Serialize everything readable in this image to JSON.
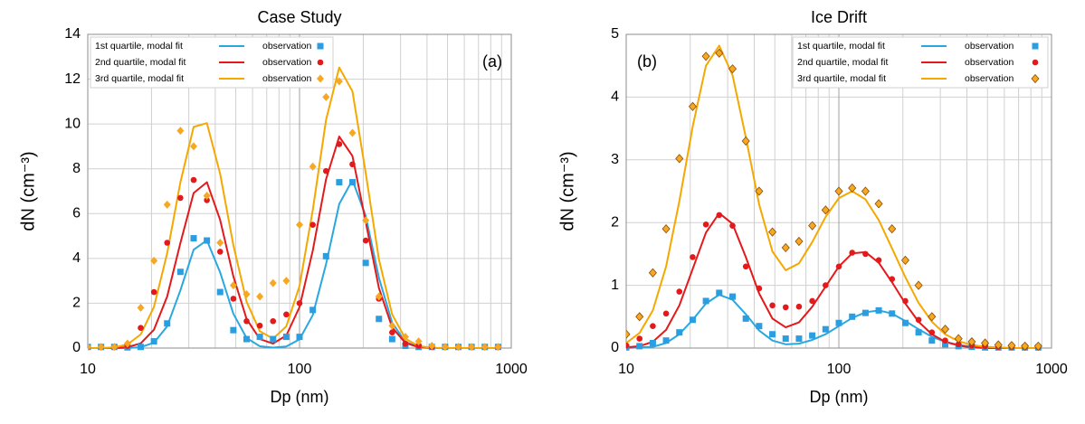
{
  "chart_data": [
    {
      "type": "line",
      "title": "Case Study",
      "x_label": "Dp (nm)",
      "y_label": "dN (cm⁻³)",
      "annotation": "(a)",
      "annotation_corner": "upper right",
      "x_scale": "log",
      "xlim": [
        10,
        1000
      ],
      "xticks": [
        10,
        100,
        1000
      ],
      "x_minor_ticks": [
        20,
        30,
        40,
        50,
        60,
        70,
        80,
        90,
        200,
        300,
        400,
        500,
        600,
        700,
        800,
        900
      ],
      "ylim": [
        0,
        14
      ],
      "yticks": [
        0,
        2,
        4,
        6,
        8,
        10,
        12,
        14
      ],
      "grid": true,
      "legend": "upper left",
      "x": [
        10,
        11.55,
        13.34,
        15.4,
        17.78,
        20.54,
        23.71,
        27.38,
        31.62,
        36.52,
        42.17,
        48.7,
        56.23,
        64.94,
        74.99,
        86.6,
        100,
        115.5,
        133.4,
        154,
        177.8,
        205.4,
        237.1,
        273.8,
        316.2,
        365.2,
        421.7,
        487,
        562.3,
        649.4,
        749.9,
        866
      ],
      "series": [
        {
          "name": "1st quartile, modal fit",
          "color": "#29a8e0",
          "values": [
            0,
            0,
            0,
            0,
            0.04,
            0.24,
            0.97,
            2.58,
            4.39,
            4.81,
            3.38,
            1.53,
            0.45,
            0.08,
            0.02,
            0.07,
            0.39,
            1.47,
            3.74,
            6.43,
            7.5,
            5.89,
            3.14,
            1.13,
            0.28,
            0.05,
            0,
            0,
            0,
            0,
            0,
            0
          ]
        },
        {
          "name": "observation",
          "color": "#2a9ee0",
          "marker": "square",
          "values": [
            0.05,
            0.05,
            0.05,
            0.03,
            0.05,
            0.3,
            1.1,
            3.4,
            4.9,
            4.8,
            2.5,
            0.8,
            0.4,
            0.5,
            0.4,
            0.5,
            0.5,
            1.7,
            4.1,
            7.4,
            7.4,
            3.8,
            1.3,
            0.4,
            0.1,
            0.05,
            0.05,
            0.05,
            0.05,
            0.05,
            0.05,
            0.05
          ]
        },
        {
          "name": "2nd quartile, modal fit",
          "color": "#e3191b",
          "values": [
            0,
            0,
            0,
            0.04,
            0.21,
            0.82,
            2.3,
            4.69,
            6.92,
            7.4,
            5.72,
            3.2,
            1.3,
            0.4,
            0.2,
            0.56,
            1.83,
            4.35,
            7.53,
            9.44,
            8.57,
            5.63,
            2.68,
            0.92,
            0.23,
            0.04,
            0,
            0,
            0,
            0,
            0,
            0
          ]
        },
        {
          "name": "observation",
          "color": "#e3191b",
          "marker": "circle",
          "values": [
            0.05,
            0.05,
            0.05,
            0.1,
            0.9,
            2.5,
            4.7,
            6.7,
            7.5,
            6.6,
            4.3,
            2.2,
            1.2,
            1.0,
            1.2,
            1.5,
            2.0,
            5.5,
            7.9,
            9.1,
            8.2,
            4.8,
            2.2,
            0.7,
            0.2,
            0.1,
            0.05,
            0.05,
            0.05,
            0.05,
            0.05,
            0.05
          ]
        },
        {
          "name": "3rd quartile, modal fit",
          "color": "#f5a800",
          "values": [
            0,
            0,
            0.03,
            0.16,
            0.61,
            1.84,
            4.23,
            7.4,
            9.87,
            10.04,
            7.78,
            4.59,
            2.07,
            0.75,
            0.42,
            0.97,
            2.77,
            6.16,
            10.18,
            12.52,
            11.46,
            7.81,
            3.96,
            1.5,
            0.42,
            0.09,
            0.01,
            0,
            0,
            0,
            0,
            0
          ]
        },
        {
          "name": "observation",
          "color": "#f7a823",
          "marker": "diamond",
          "values": [
            0.05,
            0.05,
            0.05,
            0.2,
            1.8,
            3.9,
            6.4,
            9.7,
            9.0,
            6.8,
            4.7,
            2.8,
            2.4,
            2.3,
            2.9,
            3.0,
            5.5,
            8.1,
            11.2,
            11.9,
            9.6,
            5.7,
            2.3,
            1.0,
            0.5,
            0.3,
            0.1,
            0.05,
            0.05,
            0.05,
            0.05,
            0.05
          ]
        }
      ]
    },
    {
      "type": "line",
      "title": "Ice Drift",
      "x_label": "Dp (nm)",
      "y_label": "dN (cm⁻³)",
      "annotation": "(b)",
      "annotation_corner": "upper left",
      "x_scale": "log",
      "xlim": [
        10,
        1000
      ],
      "xticks": [
        10,
        100,
        1000
      ],
      "x_minor_ticks": [
        20,
        30,
        40,
        50,
        60,
        70,
        80,
        90,
        200,
        300,
        400,
        500,
        600,
        700,
        800,
        900
      ],
      "ylim": [
        0,
        5
      ],
      "yticks": [
        0,
        1,
        2,
        3,
        4,
        5
      ],
      "grid": true,
      "legend": "upper right",
      "x": [
        10,
        11.55,
        13.34,
        15.4,
        17.78,
        20.54,
        23.71,
        27.38,
        31.62,
        36.52,
        42.17,
        48.7,
        56.23,
        64.94,
        74.99,
        86.6,
        100,
        115.5,
        133.4,
        154,
        177.8,
        205.4,
        237.1,
        273.8,
        316.2,
        365.2,
        421.7,
        487,
        562.3,
        649.4,
        749.9,
        866
      ],
      "series": [
        {
          "name": "1st  quartile, modal fit",
          "color": "#29a8e0",
          "values": [
            0,
            0.01,
            0.02,
            0.08,
            0.22,
            0.45,
            0.71,
            0.85,
            0.77,
            0.54,
            0.28,
            0.12,
            0.06,
            0.07,
            0.13,
            0.22,
            0.35,
            0.48,
            0.57,
            0.6,
            0.55,
            0.43,
            0.3,
            0.18,
            0.1,
            0.05,
            0.02,
            0.01,
            0,
            0,
            0,
            0
          ]
        },
        {
          "name": "observation",
          "color": "#2a9ee0",
          "marker": "square",
          "values": [
            0.01,
            0.03,
            0.08,
            0.12,
            0.25,
            0.45,
            0.75,
            0.88,
            0.82,
            0.47,
            0.35,
            0.22,
            0.15,
            0.15,
            0.2,
            0.3,
            0.4,
            0.5,
            0.56,
            0.6,
            0.55,
            0.4,
            0.25,
            0.12,
            0.06,
            0.03,
            0.02,
            0.01,
            0.01,
            0.01,
            0.01,
            0.01
          ]
        },
        {
          "name": "2nd quartile, modal fit",
          "color": "#e3191b",
          "values": [
            0.01,
            0.03,
            0.1,
            0.29,
            0.68,
            1.26,
            1.84,
            2.15,
            1.98,
            1.45,
            0.87,
            0.47,
            0.33,
            0.41,
            0.66,
            0.98,
            1.3,
            1.51,
            1.53,
            1.36,
            1.05,
            0.71,
            0.42,
            0.22,
            0.1,
            0.04,
            0.01,
            0,
            0,
            0,
            0,
            0
          ]
        },
        {
          "name": "observation",
          "color": "#e3191b",
          "marker": "circle",
          "values": [
            0.04,
            0.15,
            0.35,
            0.55,
            0.9,
            1.45,
            1.97,
            2.12,
            1.95,
            1.3,
            0.95,
            0.68,
            0.65,
            0.66,
            0.75,
            1.0,
            1.3,
            1.52,
            1.5,
            1.4,
            1.1,
            0.75,
            0.45,
            0.25,
            0.12,
            0.06,
            0.04,
            0.03,
            0.02,
            0.02,
            0.02,
            0.02
          ]
        },
        {
          "name": "3rd  quartile, modal fit",
          "color": "#f5a800",
          "values": [
            0.08,
            0.24,
            0.6,
            1.3,
            2.34,
            3.53,
            4.5,
            4.82,
            4.35,
            3.36,
            2.29,
            1.54,
            1.24,
            1.35,
            1.69,
            2.09,
            2.39,
            2.5,
            2.37,
            2.04,
            1.59,
            1.13,
            0.72,
            0.42,
            0.22,
            0.11,
            0.05,
            0.02,
            0.01,
            0,
            0,
            0
          ]
        },
        {
          "name": "observation",
          "color": "#f7a823",
          "edgecolor": "#8a4b08",
          "marker": "diamond",
          "values": [
            0.22,
            0.5,
            1.2,
            1.9,
            3.02,
            3.85,
            4.65,
            4.7,
            4.45,
            3.3,
            2.5,
            1.85,
            1.6,
            1.7,
            1.95,
            2.2,
            2.5,
            2.55,
            2.5,
            2.3,
            1.9,
            1.4,
            1.0,
            0.5,
            0.3,
            0.15,
            0.1,
            0.08,
            0.05,
            0.04,
            0.03,
            0.03
          ]
        }
      ]
    }
  ]
}
